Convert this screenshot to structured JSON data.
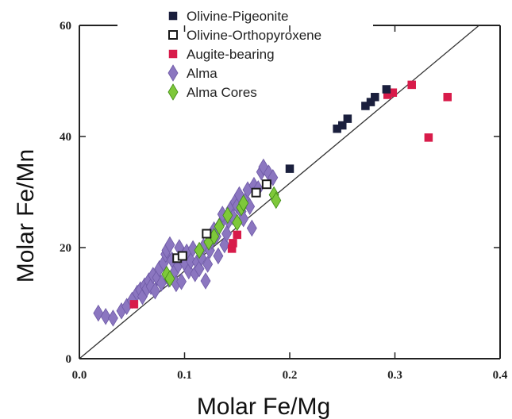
{
  "chart_data": {
    "type": "scatter",
    "xlabel": "Molar Fe/Mg",
    "ylabel": "Molar Fe/Mn",
    "xlim": [
      0.0,
      0.4
    ],
    "ylim": [
      0,
      60
    ],
    "x_ticks": [
      "0.0",
      "0.1",
      "0.2",
      "0.3",
      "0.4"
    ],
    "y_ticks": [
      "0",
      "20",
      "40",
      "60"
    ],
    "grid": false,
    "legend_position": "top-center",
    "trend_line": {
      "x": [
        0.0,
        0.38
      ],
      "y": [
        0,
        60
      ]
    },
    "series": [
      {
        "name": "Olivine-Pigeonite",
        "marker": "square-filled",
        "color": "#1a1f3d",
        "points": [
          [
            0.2,
            34.2
          ],
          [
            0.245,
            41.4
          ],
          [
            0.25,
            42.0
          ],
          [
            0.255,
            43.2
          ],
          [
            0.272,
            45.5
          ],
          [
            0.277,
            46.2
          ],
          [
            0.281,
            47.1
          ],
          [
            0.292,
            48.5
          ]
        ]
      },
      {
        "name": "Olivine-Orthopyroxene",
        "marker": "square-open",
        "color": "#1a1a1a",
        "points": [
          [
            0.093,
            18.1
          ],
          [
            0.098,
            18.5
          ],
          [
            0.121,
            22.5
          ],
          [
            0.168,
            29.9
          ],
          [
            0.178,
            31.4
          ]
        ]
      },
      {
        "name": "Augite-bearing",
        "marker": "square-filled",
        "color": "#d81b4a",
        "points": [
          [
            0.052,
            9.8
          ],
          [
            0.145,
            19.8
          ],
          [
            0.146,
            20.8
          ],
          [
            0.15,
            22.3
          ],
          [
            0.293,
            47.5
          ],
          [
            0.298,
            47.9
          ],
          [
            0.316,
            49.3
          ],
          [
            0.332,
            39.8
          ],
          [
            0.35,
            47.1
          ]
        ]
      },
      {
        "name": "Alma",
        "marker": "diamond",
        "color": "#8b76c0",
        "points": [
          [
            0.018,
            8.2
          ],
          [
            0.025,
            7.6
          ],
          [
            0.032,
            7.3
          ],
          [
            0.04,
            8.6
          ],
          [
            0.045,
            9.4
          ],
          [
            0.05,
            10.5
          ],
          [
            0.055,
            11.8
          ],
          [
            0.058,
            12.4
          ],
          [
            0.06,
            11.2
          ],
          [
            0.062,
            13.1
          ],
          [
            0.064,
            12.6
          ],
          [
            0.066,
            14.0
          ],
          [
            0.068,
            13.0
          ],
          [
            0.07,
            15.0
          ],
          [
            0.072,
            12.2
          ],
          [
            0.074,
            14.6
          ],
          [
            0.076,
            16.2
          ],
          [
            0.078,
            13.6
          ],
          [
            0.08,
            17.2
          ],
          [
            0.082,
            18.8
          ],
          [
            0.083,
            19.5
          ],
          [
            0.085,
            14.3
          ],
          [
            0.086,
            20.5
          ],
          [
            0.088,
            17.8
          ],
          [
            0.09,
            15.5
          ],
          [
            0.092,
            13.5
          ],
          [
            0.094,
            16.8
          ],
          [
            0.095,
            20.0
          ],
          [
            0.097,
            13.9
          ],
          [
            0.1,
            17.2
          ],
          [
            0.102,
            19.2
          ],
          [
            0.104,
            15.8
          ],
          [
            0.106,
            17.6
          ],
          [
            0.108,
            19.8
          ],
          [
            0.11,
            15.3
          ],
          [
            0.112,
            17.4
          ],
          [
            0.114,
            16.2
          ],
          [
            0.116,
            18.2
          ],
          [
            0.118,
            20.2
          ],
          [
            0.12,
            14.0
          ],
          [
            0.122,
            17.0
          ],
          [
            0.124,
            19.5
          ],
          [
            0.126,
            21.2
          ],
          [
            0.128,
            23.2
          ],
          [
            0.13,
            22.0
          ],
          [
            0.132,
            18.5
          ],
          [
            0.134,
            24.2
          ],
          [
            0.136,
            26.0
          ],
          [
            0.138,
            20.5
          ],
          [
            0.14,
            22.5
          ],
          [
            0.142,
            24.8
          ],
          [
            0.144,
            27.0
          ],
          [
            0.146,
            25.5
          ],
          [
            0.148,
            28.2
          ],
          [
            0.15,
            27.5
          ],
          [
            0.152,
            29.5
          ],
          [
            0.154,
            26.5
          ],
          [
            0.156,
            25.2
          ],
          [
            0.158,
            28.6
          ],
          [
            0.16,
            30.4
          ],
          [
            0.162,
            27.4
          ],
          [
            0.164,
            23.5
          ],
          [
            0.166,
            31.2
          ],
          [
            0.17,
            30.6
          ],
          [
            0.173,
            33.6
          ],
          [
            0.175,
            34.5
          ],
          [
            0.18,
            33.4
          ],
          [
            0.184,
            32.6
          ]
        ]
      },
      {
        "name": "Alma Cores",
        "marker": "diamond",
        "color": "#7ec83a",
        "points": [
          [
            0.083,
            15.2
          ],
          [
            0.086,
            14.4
          ],
          [
            0.114,
            19.5
          ],
          [
            0.123,
            21.0
          ],
          [
            0.128,
            22.0
          ],
          [
            0.133,
            23.8
          ],
          [
            0.141,
            25.8
          ],
          [
            0.15,
            24.5
          ],
          [
            0.154,
            27.2
          ],
          [
            0.156,
            28.0
          ],
          [
            0.185,
            29.5
          ],
          [
            0.187,
            28.5
          ]
        ]
      }
    ]
  }
}
